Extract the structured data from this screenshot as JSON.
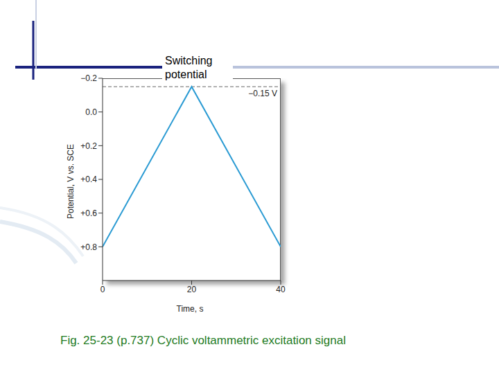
{
  "chart_data": {
    "type": "line",
    "title": "Fig. 25-23 (p.737) Cyclic voltammetric excitation signal",
    "x_label": "Time, s",
    "y_label": "Potential, V vs. SCE",
    "x": [
      0,
      20,
      40
    ],
    "values": [
      0.8,
      -0.15,
      0.8
    ],
    "color": "#2b9bd3",
    "xlim": [
      0,
      40
    ],
    "xticks": [
      0,
      20,
      40
    ],
    "ylim": [
      1.0,
      -0.2
    ],
    "yticks": [
      {
        "value": -0.2,
        "label": "−0.2"
      },
      {
        "value": 0,
        "label": "0.0"
      },
      {
        "value": 0.2,
        "label": "+0.2"
      },
      {
        "value": 0.4,
        "label": "+0.4"
      },
      {
        "value": 0.6,
        "label": "+0.6"
      },
      {
        "value": 0.8,
        "label": "+0.8"
      }
    ],
    "reference_lines": [
      {
        "y": -0.15,
        "label": "−0.15 V",
        "line_style": "dashed"
      }
    ],
    "annotations": [
      {
        "text": "Switching potential"
      }
    ]
  }
}
